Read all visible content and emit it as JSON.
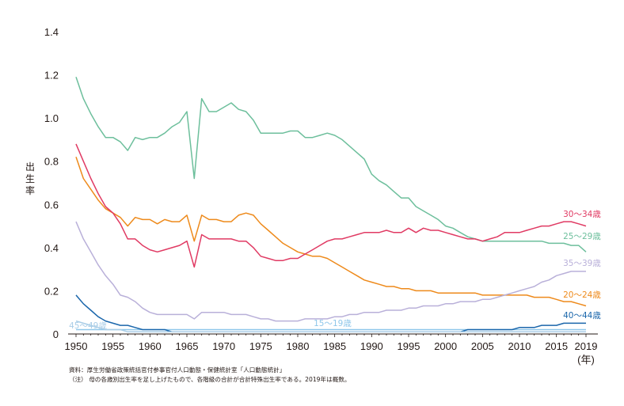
{
  "chart_data": {
    "type": "line",
    "ylabel": "出生率",
    "xlabel_unit": "(年)",
    "ylim": [
      0,
      1.4
    ],
    "yticks": [
      "0",
      "0.2",
      "0.4",
      "0.6",
      "0.8",
      "1.0",
      "1.2",
      "1.4"
    ],
    "xticks": [
      "1950",
      "1955",
      "1960",
      "1965",
      "1970",
      "1975",
      "1980",
      "1985",
      "1990",
      "1995",
      "2000",
      "2005",
      "2010",
      "2015",
      "2019"
    ],
    "x": [
      1950,
      1951,
      1952,
      1953,
      1954,
      1955,
      1956,
      1957,
      1958,
      1959,
      1960,
      1961,
      1962,
      1963,
      1964,
      1965,
      1966,
      1967,
      1968,
      1969,
      1970,
      1971,
      1972,
      1973,
      1974,
      1975,
      1976,
      1977,
      1978,
      1979,
      1980,
      1981,
      1982,
      1983,
      1984,
      1985,
      1986,
      1987,
      1988,
      1989,
      1990,
      1991,
      1992,
      1993,
      1994,
      1995,
      1996,
      1997,
      1998,
      1999,
      2000,
      2001,
      2002,
      2003,
      2004,
      2005,
      2006,
      2007,
      2008,
      2009,
      2010,
      2011,
      2012,
      2013,
      2014,
      2015,
      2016,
      2017,
      2018,
      2019
    ],
    "series": [
      {
        "name": "15〜19歳",
        "color": "#8fc7ea",
        "values": [
          0.02,
          0.02,
          0.02,
          0.02,
          0.02,
          0.02,
          0.02,
          0.02,
          0.02,
          0.02,
          0.02,
          0.02,
          0.02,
          0.02,
          0.02,
          0.02,
          0.02,
          0.02,
          0.02,
          0.02,
          0.02,
          0.02,
          0.02,
          0.02,
          0.02,
          0.02,
          0.02,
          0.02,
          0.02,
          0.02,
          0.02,
          0.02,
          0.02,
          0.02,
          0.02,
          0.02,
          0.02,
          0.02,
          0.02,
          0.02,
          0.02,
          0.02,
          0.02,
          0.02,
          0.02,
          0.02,
          0.02,
          0.02,
          0.02,
          0.02,
          0.02,
          0.02,
          0.02,
          0.02,
          0.02,
          0.02,
          0.02,
          0.02,
          0.02,
          0.02,
          0.02,
          0.02,
          0.02,
          0.02,
          0.02,
          0.02,
          0.02,
          0.02,
          0.02,
          0.02
        ]
      },
      {
        "name": "20〜24歳",
        "color": "#ee8a1b",
        "values": [
          0.82,
          0.72,
          0.67,
          0.62,
          0.58,
          0.56,
          0.54,
          0.5,
          0.54,
          0.53,
          0.53,
          0.51,
          0.53,
          0.52,
          0.52,
          0.55,
          0.43,
          0.55,
          0.53,
          0.53,
          0.52,
          0.52,
          0.55,
          0.56,
          0.55,
          0.51,
          0.48,
          0.45,
          0.42,
          0.4,
          0.38,
          0.37,
          0.36,
          0.36,
          0.35,
          0.33,
          0.31,
          0.29,
          0.27,
          0.25,
          0.24,
          0.23,
          0.22,
          0.22,
          0.21,
          0.21,
          0.2,
          0.2,
          0.2,
          0.19,
          0.19,
          0.19,
          0.19,
          0.19,
          0.19,
          0.18,
          0.18,
          0.18,
          0.18,
          0.18,
          0.18,
          0.18,
          0.17,
          0.17,
          0.17,
          0.16,
          0.15,
          0.15,
          0.14,
          0.13
        ]
      },
      {
        "name": "25〜29歳",
        "color": "#6dbf9c",
        "values": [
          1.19,
          1.09,
          1.02,
          0.96,
          0.91,
          0.91,
          0.89,
          0.85,
          0.91,
          0.9,
          0.91,
          0.91,
          0.93,
          0.96,
          0.98,
          1.03,
          0.72,
          1.09,
          1.03,
          1.03,
          1.05,
          1.07,
          1.04,
          1.03,
          0.99,
          0.93,
          0.93,
          0.93,
          0.93,
          0.94,
          0.94,
          0.91,
          0.91,
          0.92,
          0.93,
          0.92,
          0.9,
          0.87,
          0.84,
          0.81,
          0.74,
          0.71,
          0.69,
          0.66,
          0.63,
          0.63,
          0.59,
          0.57,
          0.55,
          0.53,
          0.5,
          0.49,
          0.47,
          0.45,
          0.44,
          0.43,
          0.43,
          0.43,
          0.43,
          0.43,
          0.43,
          0.43,
          0.43,
          0.43,
          0.42,
          0.42,
          0.42,
          0.41,
          0.41,
          0.38
        ]
      },
      {
        "name": "30〜34歳",
        "color": "#e03a63",
        "values": [
          0.88,
          0.8,
          0.72,
          0.65,
          0.59,
          0.56,
          0.51,
          0.44,
          0.44,
          0.41,
          0.39,
          0.38,
          0.39,
          0.4,
          0.41,
          0.43,
          0.31,
          0.46,
          0.44,
          0.44,
          0.44,
          0.44,
          0.43,
          0.43,
          0.4,
          0.36,
          0.35,
          0.34,
          0.34,
          0.35,
          0.35,
          0.37,
          0.39,
          0.41,
          0.43,
          0.44,
          0.44,
          0.45,
          0.46,
          0.47,
          0.47,
          0.47,
          0.48,
          0.47,
          0.47,
          0.49,
          0.47,
          0.49,
          0.48,
          0.48,
          0.47,
          0.46,
          0.45,
          0.44,
          0.44,
          0.43,
          0.44,
          0.45,
          0.47,
          0.47,
          0.47,
          0.48,
          0.49,
          0.5,
          0.5,
          0.51,
          0.52,
          0.52,
          0.51,
          0.5
        ]
      },
      {
        "name": "35〜39歳",
        "color": "#b9b0d9",
        "values": [
          0.52,
          0.44,
          0.38,
          0.32,
          0.27,
          0.23,
          0.18,
          0.17,
          0.15,
          0.12,
          0.1,
          0.09,
          0.09,
          0.09,
          0.09,
          0.09,
          0.07,
          0.1,
          0.1,
          0.1,
          0.1,
          0.09,
          0.09,
          0.09,
          0.08,
          0.07,
          0.07,
          0.06,
          0.06,
          0.06,
          0.06,
          0.07,
          0.07,
          0.07,
          0.07,
          0.08,
          0.08,
          0.09,
          0.09,
          0.1,
          0.1,
          0.1,
          0.11,
          0.11,
          0.11,
          0.12,
          0.12,
          0.13,
          0.13,
          0.13,
          0.14,
          0.14,
          0.15,
          0.15,
          0.15,
          0.16,
          0.16,
          0.17,
          0.18,
          0.19,
          0.2,
          0.21,
          0.22,
          0.24,
          0.25,
          0.27,
          0.28,
          0.29,
          0.29,
          0.29
        ]
      },
      {
        "name": "40〜44歳",
        "color": "#1a66ab",
        "values": [
          0.18,
          0.14,
          0.11,
          0.08,
          0.06,
          0.05,
          0.04,
          0.04,
          0.03,
          0.02,
          0.02,
          0.02,
          0.02,
          0.01,
          0.01,
          0.01,
          0.01,
          0.01,
          0.01,
          0.01,
          0.01,
          0.01,
          0.01,
          0.01,
          0.01,
          0.01,
          0.01,
          0.01,
          0.01,
          0.01,
          0.01,
          0.01,
          0.01,
          0.01,
          0.01,
          0.01,
          0.01,
          0.01,
          0.01,
          0.01,
          0.01,
          0.01,
          0.01,
          0.01,
          0.01,
          0.01,
          0.01,
          0.01,
          0.01,
          0.01,
          0.01,
          0.01,
          0.01,
          0.02,
          0.02,
          0.02,
          0.02,
          0.02,
          0.02,
          0.02,
          0.03,
          0.03,
          0.03,
          0.04,
          0.04,
          0.04,
          0.05,
          0.05,
          0.05,
          0.05
        ]
      },
      {
        "name": "45〜49歳",
        "color": "#a9cde7",
        "values": [
          0.06,
          0.05,
          0.04,
          0.03,
          0.02,
          0.02,
          0.02,
          0.01,
          0.01,
          0.01,
          0.01,
          0.01,
          0.01,
          0.01,
          0.01,
          0.01,
          0.01,
          0.01,
          0.01,
          0.01,
          0.01,
          0.01,
          0.01,
          0.01,
          0.01,
          0.01,
          0.01,
          0.01,
          0.01,
          0.01,
          0.01,
          0.01,
          0.01,
          0.01,
          0.01,
          0.01,
          0.01,
          0.01,
          0.01,
          0.01,
          0.01,
          0.01,
          0.01,
          0.01,
          0.01,
          0.01,
          0.01,
          0.01,
          0.01,
          0.01,
          0.01,
          0.01,
          0.01,
          0.01,
          0.01,
          0.01,
          0.01,
          0.01,
          0.01,
          0.01,
          0.01,
          0.01,
          0.01,
          0.01,
          0.01,
          0.01,
          0.01,
          0.01,
          0.01,
          0.01
        ]
      }
    ]
  },
  "notes": {
    "source": "資料：厚生労働省政策統括官付参事官付人口動態・保健統計室「人口動態統計」",
    "note": "（注） 母の各歳別出生率を足し上げたもので、各階級の合計が合計特殊出生率である。2019年は概数。"
  }
}
